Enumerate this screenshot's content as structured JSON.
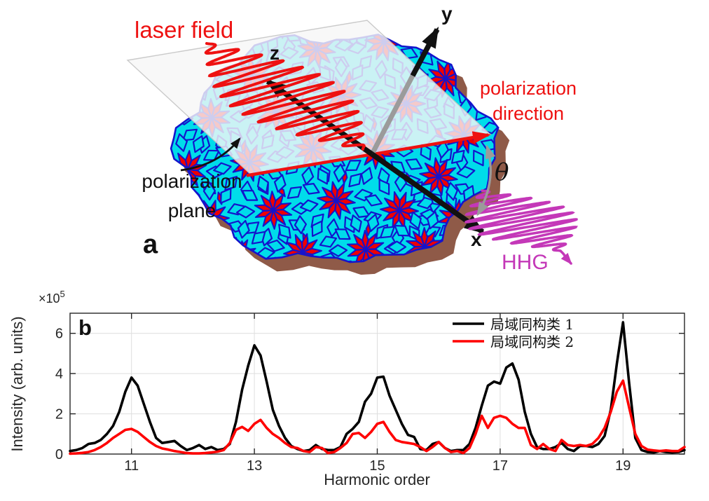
{
  "figure": {
    "background": "#ffffff"
  },
  "panel_a": {
    "label": "a",
    "labels": {
      "laser_field": "laser field",
      "axis_z": "z",
      "axis_y": "y",
      "axis_x": "x",
      "polarization_direction_line1": "polarization",
      "polarization_direction_line2": "direction",
      "polarization_plane_line1": "polarization",
      "polarization_plane_line2": "plane",
      "theta": "θ",
      "hhg": "HHG"
    },
    "colors": {
      "laser_red": "#ee1111",
      "hhg_magenta": "#c438b8",
      "tile_cyan": "#00dcea",
      "tile_red": "#ee0000",
      "tile_outline": "#1414cc",
      "shadow_brown": "#8f5a48",
      "plane_fill": "#f6f6f6",
      "plane_edge": "#c4c4c4",
      "axis_black": "#111111",
      "gray": "#9b9b9b"
    }
  },
  "panel_b": {
    "label": "b",
    "axis_color": "#262626",
    "grid_color": "#dedede"
  },
  "chart_data": {
    "type": "line",
    "title": "",
    "xlabel": "Harmonic order",
    "ylabel": "Intensity (arb. units)",
    "y_offset_base": "×10",
    "y_offset_exponent": "5",
    "xlim": [
      10,
      20
    ],
    "ylim_e5": [
      0,
      7
    ],
    "xticks": [
      11,
      13,
      15,
      17,
      19
    ],
    "yticks_e5": [
      0,
      2,
      4,
      6
    ],
    "grid": true,
    "legend_position": "upper right, inside, no box",
    "x_start": 10,
    "x_step": 0.1,
    "series": [
      {
        "name": "局域同构类 1",
        "color": "#000000",
        "values_e5": [
          0.15,
          0.2,
          0.3,
          0.5,
          0.55,
          0.7,
          1.0,
          1.4,
          2.1,
          3.1,
          3.8,
          3.4,
          2.5,
          1.6,
          0.8,
          0.55,
          0.6,
          0.65,
          0.4,
          0.2,
          0.3,
          0.45,
          0.25,
          0.35,
          0.2,
          0.25,
          0.5,
          1.6,
          3.2,
          4.4,
          5.4,
          4.9,
          3.6,
          2.2,
          1.4,
          0.8,
          0.4,
          0.25,
          0.15,
          0.2,
          0.45,
          0.25,
          0.2,
          0.2,
          0.35,
          1.0,
          1.25,
          1.6,
          2.6,
          3.0,
          3.8,
          3.85,
          2.9,
          2.2,
          1.5,
          0.95,
          0.85,
          0.25,
          0.2,
          0.5,
          0.6,
          0.3,
          0.15,
          0.2,
          0.2,
          0.5,
          1.3,
          2.4,
          3.4,
          3.6,
          3.5,
          4.3,
          4.5,
          3.7,
          2.1,
          1.0,
          0.35,
          0.25,
          0.25,
          0.35,
          0.55,
          0.25,
          0.15,
          0.4,
          0.4,
          0.35,
          0.5,
          0.9,
          2.2,
          4.5,
          6.55,
          3.5,
          0.8,
          0.2,
          0.1,
          0.08,
          0.15,
          0.1,
          0.08,
          0.1,
          0.2
        ]
      },
      {
        "name": "局域同构类 2",
        "color": "#ff0000",
        "values_e5": [
          0.02,
          0.03,
          0.06,
          0.1,
          0.2,
          0.35,
          0.55,
          0.8,
          1.0,
          1.2,
          1.25,
          1.1,
          0.85,
          0.6,
          0.4,
          0.28,
          0.22,
          0.15,
          0.1,
          0.05,
          0.03,
          0.03,
          0.05,
          0.08,
          0.12,
          0.2,
          0.55,
          1.2,
          1.35,
          1.15,
          1.5,
          1.7,
          1.3,
          1.0,
          0.8,
          0.55,
          0.35,
          0.3,
          0.15,
          0.1,
          0.35,
          0.3,
          0.05,
          0.1,
          0.3,
          0.55,
          1.0,
          1.05,
          0.8,
          1.1,
          1.5,
          1.6,
          1.1,
          0.7,
          0.6,
          0.55,
          0.5,
          0.35,
          0.15,
          0.35,
          0.6,
          0.3,
          0.1,
          0.15,
          0.05,
          0.3,
          1.0,
          1.9,
          1.3,
          1.8,
          1.9,
          1.8,
          1.5,
          1.3,
          1.3,
          0.45,
          0.25,
          0.5,
          0.25,
          0.15,
          0.7,
          0.45,
          0.4,
          0.45,
          0.4,
          0.5,
          0.8,
          1.3,
          2.1,
          3.1,
          3.65,
          2.3,
          1.0,
          0.4,
          0.22,
          0.18,
          0.15,
          0.18,
          0.15,
          0.15,
          0.35
        ]
      }
    ]
  }
}
